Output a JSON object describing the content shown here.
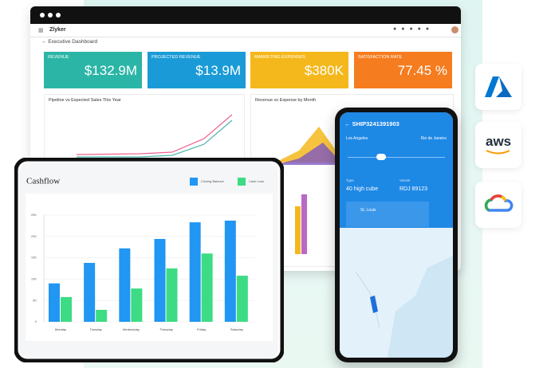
{
  "window": {
    "app_name": "Zlyker",
    "page_title": "Executive Dashboard"
  },
  "kpis": [
    {
      "label": "REVENUE",
      "value": "$132.9M"
    },
    {
      "label": "PROJECTED REVENUE",
      "value": "$13.9M"
    },
    {
      "label": "MARKETING EXPENSES",
      "value": "$380K"
    },
    {
      "label": "SATISFACTION RATE",
      "value": "77.45 %"
    }
  ],
  "panels": {
    "pipeline_title": "Pipeline vs Expected Sales This Year",
    "revenue_title": "Revenue vs Expense by Month"
  },
  "chart_data": {
    "type": "bar",
    "title": "Cashflow",
    "categories": [
      "Monday",
      "Tuesday",
      "Wednesday",
      "Thursday",
      "Friday",
      "Saturday"
    ],
    "series": [
      {
        "name": "Closing Balance",
        "color": "#2196f3",
        "values": [
          9000,
          13800,
          17200,
          19400,
          23300,
          23700
        ]
      },
      {
        "name": "Cash Loss",
        "color": "#3ddc84",
        "values": [
          5800,
          2800,
          7800,
          12500,
          16000,
          10800
        ]
      }
    ],
    "ylim": [
      0,
      25000
    ],
    "yticks": [
      0,
      {
        "value": 5000,
        "label": "5K"
      },
      {
        "value": 10000,
        "label": "10K"
      },
      {
        "value": 15000,
        "label": "15K"
      },
      {
        "value": 20000,
        "label": "20K"
      },
      {
        "value": 25000,
        "label": "25K"
      }
    ]
  },
  "shipment": {
    "id": "SHIP3241391903",
    "origin": "Los Angeles",
    "destination": "Rio de Janeiro",
    "type_label": "Type",
    "type": "40 high cube",
    "vessel_label": "Vessel",
    "vessel": "RDJ 89123",
    "stop": "St. Louis"
  },
  "clouds": {
    "aws_logo": "aws"
  }
}
